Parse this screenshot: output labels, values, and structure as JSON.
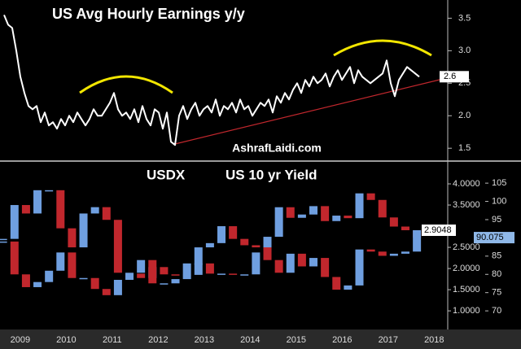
{
  "chart_data": [
    {
      "type": "line",
      "title": "US Avg Hourly Earnings y/y",
      "watermark": "AshrafLaidi.com",
      "color": "#ffffff",
      "values": [
        3.55,
        3.4,
        3.35,
        3.0,
        2.6,
        2.35,
        2.15,
        2.1,
        2.15,
        1.9,
        2.05,
        1.85,
        1.9,
        1.8,
        1.95,
        1.85,
        2.0,
        1.9,
        2.05,
        1.95,
        1.85,
        1.95,
        2.1,
        2.0,
        2.0,
        2.1,
        2.2,
        2.35,
        2.1,
        2.0,
        2.05,
        1.95,
        2.1,
        1.9,
        2.15,
        1.95,
        1.85,
        2.1,
        2.05,
        1.8,
        2.05,
        1.6,
        1.55,
        2.0,
        2.15,
        1.95,
        2.1,
        2.2,
        2.0,
        2.1,
        2.15,
        2.05,
        2.25,
        2.0,
        2.15,
        2.1,
        2.2,
        2.05,
        2.25,
        2.1,
        2.15,
        2.0,
        2.1,
        2.2,
        2.15,
        2.25,
        2.05,
        2.3,
        2.2,
        2.35,
        2.25,
        2.4,
        2.5,
        2.35,
        2.55,
        2.45,
        2.6,
        2.5,
        2.55,
        2.65,
        2.45,
        2.6,
        2.7,
        2.55,
        2.65,
        2.75,
        2.5,
        2.7,
        2.6,
        2.55,
        2.5,
        2.55,
        2.6,
        2.65,
        2.85,
        2.5,
        2.3,
        2.55,
        2.65,
        2.75,
        2.7,
        2.65,
        2.6
      ],
      "ylim": [
        1.34,
        3.78
      ],
      "yticks": [
        1.5,
        {
          "value": 2,
          "label": "2.0"
        },
        2.5,
        {
          "value": 3,
          "label": "3.0"
        },
        3.5
      ]
    },
    {
      "type": "candlestick",
      "up_color": "#6f9fe0",
      "down_color": "#c1272d",
      "x": [
        2009.125,
        2009.375,
        2009.625,
        2009.875,
        2010.125,
        2010.375,
        2010.625,
        2010.875,
        2011.125,
        2011.375,
        2011.625,
        2011.875,
        2012.125,
        2012.375,
        2012.625,
        2012.875,
        2013.125,
        2013.375,
        2013.625,
        2013.875,
        2014.125,
        2014.375,
        2014.625,
        2014.875,
        2015.125,
        2015.375,
        2015.625,
        2015.875,
        2016.125,
        2016.375,
        2016.625,
        2016.875,
        2017.125,
        2017.375,
        2017.625,
        2017.875,
        2018.125
      ],
      "xlim": [
        2009.06,
        2018.76
      ],
      "xticks": [
        {
          "value": 2009.5,
          "label": "2009"
        },
        {
          "value": 2010.5,
          "label": "2010"
        },
        {
          "value": 2011.5,
          "label": "2011"
        },
        {
          "value": 2012.5,
          "label": "2012"
        },
        {
          "value": 2013.5,
          "label": "2013"
        },
        {
          "value": 2014.5,
          "label": "2014"
        },
        {
          "value": 2015.5,
          "label": "2015"
        },
        {
          "value": 2016.5,
          "label": "2016"
        },
        {
          "value": 2017.5,
          "label": "2017"
        },
        {
          "value": 2018.5,
          "label": "2018"
        }
      ],
      "series": [
        {
          "name": "USDX",
          "color": "#8fb8e8",
          "axis": "y2",
          "values": [
            89,
            80,
            76.5,
            77.9,
            81,
            86,
            79,
            79,
            76,
            74.3,
            78.5,
            80.2,
            79,
            82,
            80,
            79.8,
            83,
            83,
            80.2,
            80.2,
            80,
            80,
            86,
            90.3,
            98.4,
            95.5,
            96.4,
            98.7,
            94.6,
            96.1,
            95.4,
            102.2,
            100.4,
            95.6,
            93.1,
            92.1,
            90.075
          ]
        },
        {
          "name": "US 10 yr Yield",
          "color": "#ffffff",
          "values": [
            2.7,
            3.5,
            3.3,
            3.85,
            3.85,
            2.95,
            2.5,
            3.3,
            3.45,
            3.15,
            1.9,
            1.9,
            2.2,
            1.65,
            1.65,
            1.75,
            1.85,
            2.5,
            2.6,
            3.0,
            2.7,
            2.55,
            2.5,
            2.2,
            1.9,
            2.35,
            2.05,
            2.25,
            1.8,
            1.5,
            1.6,
            2.45,
            2.4,
            2.3,
            2.35,
            2.4,
            2.9048
          ]
        }
      ],
      "ylim": [
        0.56,
        4.5
      ],
      "yticks": [
        {
          "value": 1,
          "label": "1.0000"
        },
        {
          "value": 1.5,
          "label": "1.5000"
        },
        {
          "value": 2,
          "label": "2.0000"
        },
        {
          "value": 2.5,
          "label": "2.5000"
        },
        {
          "value": 3.5,
          "label": "3.5000"
        },
        {
          "value": 4,
          "label": "4.0000"
        }
      ],
      "y2lim": [
        64.9,
        110.6
      ],
      "y2ticks": [
        70,
        75,
        80,
        85,
        95,
        100,
        105
      ]
    }
  ]
}
